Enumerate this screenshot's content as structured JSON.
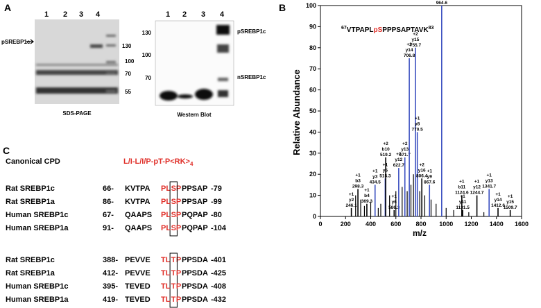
{
  "panels": {
    "a": "A",
    "b": "B",
    "c": "C"
  },
  "gels": {
    "sds": {
      "title": "SDS-PAGE",
      "lanes": [
        "1",
        "2",
        "3",
        "4"
      ],
      "markers": [
        "130",
        "100",
        "70",
        "55"
      ],
      "arrow_label": "pSREBP1c"
    },
    "western": {
      "title": "Western Blot",
      "lanes": [
        "1",
        "2",
        "3",
        "4"
      ],
      "markers": [
        "130",
        "100",
        "70"
      ],
      "labels": [
        "pSREBP1c",
        "nSREBP1c"
      ]
    }
  },
  "chart_data": {
    "type": "stem",
    "xlabel": "m/z",
    "ylabel": "Relative Abundance",
    "peptide": {
      "start": "67",
      "pre": "VTPAPL",
      "site": "pS",
      "post": "PPPSAPTAVK",
      "end": "83"
    },
    "xlim": [
      0,
      1600
    ],
    "xticks": [
      0,
      200,
      400,
      600,
      800,
      1000,
      1200,
      1400,
      1600
    ],
    "ylim": [
      0,
      100
    ],
    "yticks": [
      0,
      10,
      20,
      30,
      40,
      50,
      60,
      70,
      80,
      90,
      100
    ],
    "peaks": [
      {
        "mz": 246.1,
        "intensity": 4,
        "color": "#000000",
        "charge": "+1",
        "ion": "y2"
      },
      {
        "mz": 298.3,
        "intensity": 13,
        "color": "#000000",
        "charge": "+1",
        "ion": "b3"
      },
      {
        "mz": 369.3,
        "intensity": 6,
        "color": "#000000",
        "charge": "+1",
        "ion": "b4"
      },
      {
        "mz": 434.5,
        "intensity": 15,
        "color": "#3a4fc0",
        "charge": "+1",
        "ion": "y3"
      },
      {
        "mz": 515.3,
        "intensity": 18,
        "color": "#3a4fc0",
        "charge": "+1",
        "ion": "y5"
      },
      {
        "mz": 519.2,
        "intensity": 28,
        "color": "#000000",
        "charge": "+2",
        "ion": "b10"
      },
      {
        "mz": 586.3,
        "intensity": 3,
        "color": "#000000",
        "charge": "+1",
        "ion": "y6"
      },
      {
        "mz": 622.7,
        "intensity": 23,
        "color": "#3a4fc0",
        "charge": "+2",
        "ion": "y12"
      },
      {
        "mz": 671.7,
        "intensity": 28,
        "color": "#3a4fc0",
        "charge": "+2",
        "ion": "y13"
      },
      {
        "mz": 706.8,
        "intensity": 75,
        "color": "#3a4fc0",
        "charge": "+2",
        "ion": "y14"
      },
      {
        "mz": 755.7,
        "intensity": 80,
        "color": "#3a4fc0",
        "charge": "+2",
        "ion": "y15"
      },
      {
        "mz": 770.5,
        "intensity": 40,
        "color": "#3a4fc0",
        "charge": "+1",
        "ion": "y8"
      },
      {
        "mz": 806.4,
        "intensity": 18,
        "color": "#000000",
        "charge": "+2",
        "ion": "y16"
      },
      {
        "mz": 867.6,
        "intensity": 15,
        "color": "#3a4fc0",
        "charge": "+1",
        "ion": "y9"
      },
      {
        "mz": 964.6,
        "intensity": 100,
        "color": "#3a4fc0",
        "charge": "+1",
        "ion": "y10"
      },
      {
        "mz": 1124.6,
        "intensity": 10,
        "color": "#000000",
        "charge": "+1",
        "ion": "b11"
      },
      {
        "mz": 1131.5,
        "intensity": 3,
        "color": "#000000",
        "charge": "+1",
        "ion": "y11"
      },
      {
        "mz": 1244.7,
        "intensity": 10,
        "color": "#000000",
        "charge": "+1",
        "ion": "y12"
      },
      {
        "mz": 1341.7,
        "intensity": 13,
        "color": "#3a4fc0",
        "charge": "+1",
        "ion": "y13"
      },
      {
        "mz": 1412.6,
        "intensity": 4,
        "color": "#000000",
        "charge": "+1",
        "ion": "y14"
      },
      {
        "mz": 1509.7,
        "intensity": 3,
        "color": "#000000",
        "charge": "+1",
        "ion": "y15"
      }
    ],
    "noise": {
      "x": [
        280,
        320,
        350,
        400,
        460,
        480,
        550,
        600,
        650,
        690,
        720,
        740,
        790,
        830,
        880,
        920,
        1000,
        1060,
        1180,
        1300
      ],
      "values": [
        10,
        8,
        5,
        7,
        4,
        6,
        10,
        12,
        14,
        12,
        15,
        20,
        12,
        10,
        8,
        6,
        4,
        3,
        2,
        2
      ],
      "color": "#000000"
    }
  },
  "alignment": {
    "canonical": {
      "name": "Canonical CPD",
      "motif": "L/I-L/I/P-pT-P<RK>",
      "sub": "4"
    },
    "groups": [
      [
        {
          "name": "Rat SREBP1c",
          "start": "66-",
          "left": "KVTPA",
          "pre": "PL",
          "site": "S",
          "post": "P",
          "right": "PPSAP",
          "end": "-79"
        },
        {
          "name": "Rat SREBP1a",
          "start": "86-",
          "left": "KVTPA",
          "pre": "PL",
          "site": "S",
          "post": "P",
          "right": "PPSAP",
          "end": "-99"
        },
        {
          "name": "Human SREBP1c",
          "start": "67-",
          "left": "QAAPS",
          "pre": "PL",
          "site": "S",
          "post": "P",
          "right": "PQPAP",
          "end": "-80"
        },
        {
          "name": "Human SREBP1a",
          "start": "91-",
          "left": "QAAPS",
          "pre": "PL",
          "site": "S",
          "post": "P",
          "right": "PQPAP",
          "end": "-104"
        }
      ],
      [
        {
          "name": "Rat SREBP1c",
          "start": "388-",
          "left": "PEVVE",
          "pre": "TL",
          "site": "T",
          "post": "P",
          "right": "PPSDA",
          "end": "-401"
        },
        {
          "name": "Rat SREBP1a",
          "start": "412-",
          "left": "PEVVE",
          "pre": "TL",
          "site": "T",
          "post": "P",
          "right": "PPSDA",
          "end": "-425"
        },
        {
          "name": "Human SREBP1c",
          "start": "395-",
          "left": "TEVED",
          "pre": "TL",
          "site": "T",
          "post": "P",
          "right": "PPSDA",
          "end": "-408"
        },
        {
          "name": "Human SREBP1a",
          "start": "419-",
          "left": "TEVED",
          "pre": "TL",
          "site": "T",
          "post": "P",
          "right": "PPSDA",
          "end": "-432"
        }
      ]
    ]
  }
}
